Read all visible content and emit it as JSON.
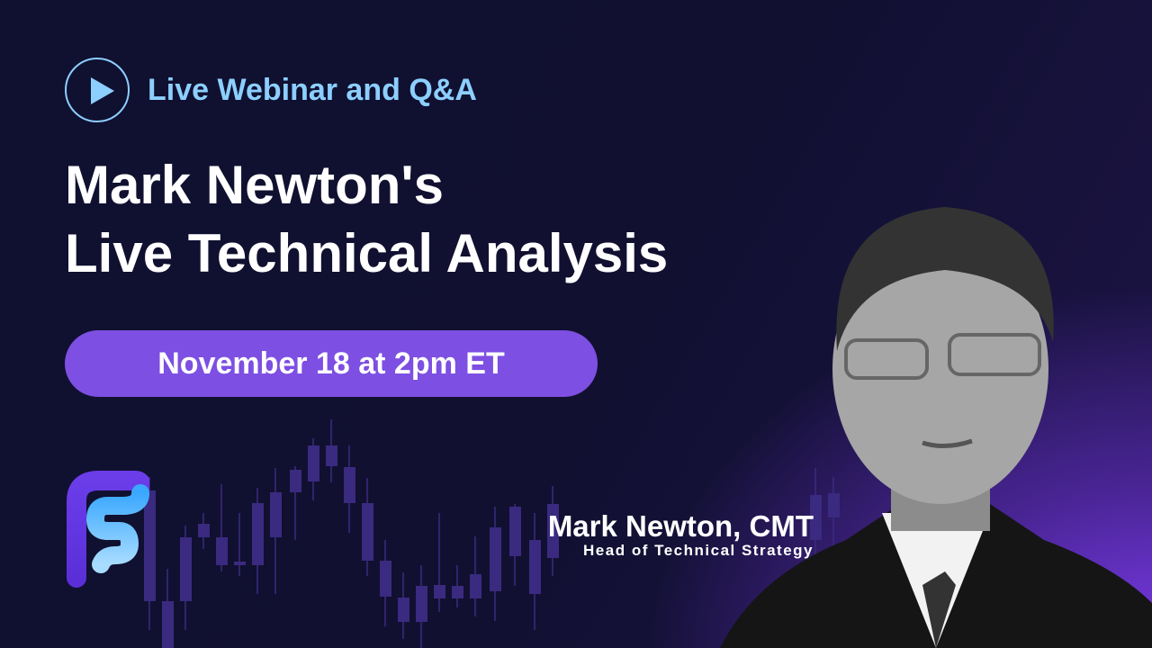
{
  "badge": {
    "icon": "play-circle-icon",
    "label": "Live Webinar and Q&A"
  },
  "title": {
    "line1": "Mark Newton's",
    "line2": "Live Technical Analysis"
  },
  "date": "November 18 at 2pm ET",
  "speaker": {
    "name": "Mark Newton, CMT",
    "role": "Head of Technical Strategy"
  },
  "colors": {
    "background": "#111030",
    "accent": "#8ccfff",
    "pill": "#7d4fe2",
    "glow": "#7a3ae8"
  }
}
